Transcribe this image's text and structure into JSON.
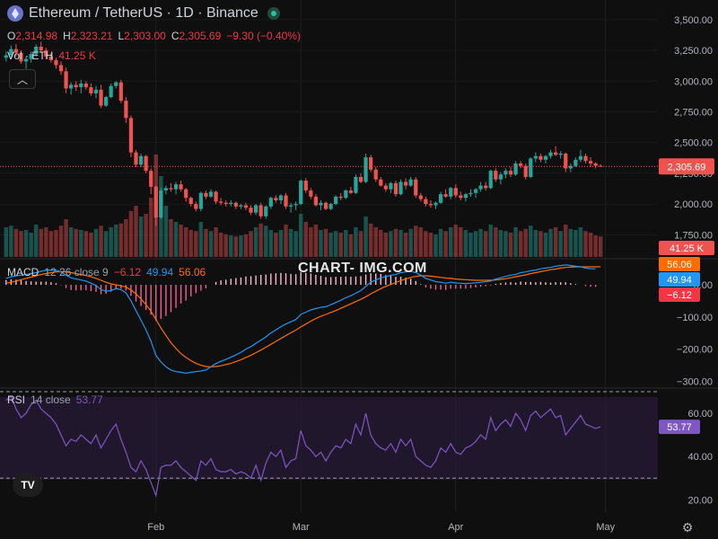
{
  "header": {
    "title": "Ethereum / TetherUS · 1D · Binance",
    "symbol_icon": "ethereum-icon",
    "o_label": "O",
    "o_value": "2,314.98",
    "h_label": "H",
    "h_value": "2,323.21",
    "l_label": "L",
    "l_value": "2,303.00",
    "c_label": "C",
    "c_value": "2,305.69",
    "change": "−9.30 (−0.40%)",
    "vol_label": "Vol · ETH",
    "vol_value": "41.25 K"
  },
  "watermark": "CHART- IMG.COM",
  "price_axis": {
    "ticks": [
      "3,500.00",
      "3,250.00",
      "3,000.00",
      "2,750.00",
      "2,500.00",
      "2,250.00",
      "2,000.00",
      "1,750.00"
    ],
    "last_price": "2,305.69",
    "vol_badge": "41.25 K"
  },
  "macd": {
    "label": "MACD",
    "params": "12 26 close 9",
    "hist_value": "−6.12",
    "macd_value": "49.94",
    "signal_value": "56.06",
    "ticks": [
      "0.00",
      "−100.00",
      "−200.00",
      "−300.00"
    ]
  },
  "rsi": {
    "label": "RSI",
    "params": "14 close",
    "value": "53.77",
    "ticks": [
      "60.00",
      "40.00",
      "20.00"
    ]
  },
  "time_axis": [
    "Feb",
    "Mar",
    "Apr",
    "May"
  ],
  "colors": {
    "up": "#26a69a",
    "down": "#ef5350",
    "macd": "#2196f3",
    "signal": "#ff6d00",
    "rsi": "#7e57c2",
    "hist_pos": "#f06292"
  },
  "chart_data": {
    "type": "candlestick",
    "title": "Ethereum / TetherUS · 1D · Binance",
    "price_range": [
      1650,
      3550
    ],
    "last_close": 2305.69,
    "ohlc": [
      [
        3190,
        3240,
        3160,
        3210
      ],
      [
        3210,
        3290,
        3180,
        3260
      ],
      [
        3260,
        3300,
        3200,
        3230
      ],
      [
        3230,
        3250,
        3140,
        3160
      ],
      [
        3160,
        3200,
        3100,
        3180
      ],
      [
        3180,
        3240,
        3150,
        3220
      ],
      [
        3220,
        3300,
        3200,
        3280
      ],
      [
        3280,
        3320,
        3230,
        3250
      ],
      [
        3250,
        3270,
        3180,
        3200
      ],
      [
        3200,
        3230,
        3150,
        3170
      ],
      [
        3170,
        3190,
        3100,
        3130
      ],
      [
        3130,
        3160,
        3050,
        3080
      ],
      [
        3080,
        3110,
        2900,
        2940
      ],
      [
        2940,
        2990,
        2890,
        2970
      ],
      [
        2970,
        3000,
        2920,
        2950
      ],
      [
        2950,
        3010,
        2900,
        2980
      ],
      [
        2980,
        3000,
        2930,
        2950
      ],
      [
        2950,
        2980,
        2880,
        2900
      ],
      [
        2900,
        2960,
        2860,
        2930
      ],
      [
        2930,
        2970,
        2780,
        2800
      ],
      [
        2800,
        2880,
        2790,
        2870
      ],
      [
        2870,
        2980,
        2860,
        2960
      ],
      [
        2960,
        3000,
        2940,
        2990
      ],
      [
        2990,
        3010,
        2820,
        2840
      ],
      [
        2840,
        2870,
        2660,
        2700
      ],
      [
        2700,
        2720,
        2380,
        2420
      ],
      [
        2420,
        2440,
        2300,
        2320
      ],
      [
        2320,
        2410,
        2300,
        2390
      ],
      [
        2390,
        2400,
        2250,
        2270
      ],
      [
        2270,
        2290,
        2080,
        2140
      ],
      [
        2140,
        2150,
        1820,
        1890
      ],
      [
        1890,
        2130,
        1880,
        2110
      ],
      [
        2110,
        2150,
        2080,
        2130
      ],
      [
        2130,
        2170,
        2100,
        2120
      ],
      [
        2120,
        2180,
        2080,
        2160
      ],
      [
        2160,
        2190,
        2100,
        2120
      ],
      [
        2120,
        2130,
        2020,
        2050
      ],
      [
        2050,
        2060,
        1980,
        2000
      ],
      [
        2000,
        2020,
        1940,
        1960
      ],
      [
        1960,
        2100,
        1940,
        2090
      ],
      [
        2090,
        2110,
        2040,
        2060
      ],
      [
        2060,
        2120,
        2050,
        2100
      ],
      [
        2100,
        2110,
        2000,
        2020
      ],
      [
        2020,
        2050,
        1990,
        2010
      ],
      [
        2010,
        2030,
        1980,
        2000
      ],
      [
        2000,
        2030,
        1980,
        2010
      ],
      [
        2010,
        2020,
        1960,
        1980
      ],
      [
        1980,
        2000,
        1960,
        1990
      ],
      [
        1990,
        2010,
        1950,
        1970
      ],
      [
        1970,
        1990,
        1910,
        1930
      ],
      [
        1930,
        2000,
        1910,
        1990
      ],
      [
        1990,
        2010,
        1880,
        1900
      ],
      [
        1900,
        1990,
        1880,
        1980
      ],
      [
        1980,
        2060,
        1960,
        2050
      ],
      [
        2050,
        2070,
        2010,
        2030
      ],
      [
        2030,
        2080,
        2000,
        2070
      ],
      [
        2070,
        2090,
        1960,
        1980
      ],
      [
        1980,
        2010,
        1930,
        1990
      ],
      [
        1990,
        2020,
        1950,
        2000
      ],
      [
        2000,
        2200,
        1990,
        2190
      ],
      [
        2190,
        2210,
        2090,
        2110
      ],
      [
        2110,
        2130,
        2040,
        2060
      ],
      [
        2060,
        2080,
        1980,
        1990
      ],
      [
        1990,
        2030,
        1950,
        2010
      ],
      [
        2010,
        2020,
        1950,
        1960
      ],
      [
        1960,
        2010,
        1950,
        2000
      ],
      [
        2000,
        2070,
        1990,
        2060
      ],
      [
        2060,
        2090,
        2030,
        2050
      ],
      [
        2050,
        2120,
        2040,
        2110
      ],
      [
        2110,
        2140,
        2080,
        2090
      ],
      [
        2090,
        2240,
        2080,
        2220
      ],
      [
        2220,
        2250,
        2170,
        2180
      ],
      [
        2180,
        2410,
        2170,
        2380
      ],
      [
        2380,
        2400,
        2260,
        2280
      ],
      [
        2280,
        2300,
        2180,
        2200
      ],
      [
        2200,
        2220,
        2140,
        2150
      ],
      [
        2150,
        2170,
        2100,
        2120
      ],
      [
        2120,
        2180,
        2090,
        2170
      ],
      [
        2170,
        2190,
        2060,
        2080
      ],
      [
        2080,
        2200,
        2070,
        2180
      ],
      [
        2180,
        2210,
        2120,
        2150
      ],
      [
        2150,
        2220,
        2140,
        2200
      ],
      [
        2200,
        2220,
        2050,
        2070
      ],
      [
        2070,
        2090,
        2020,
        2040
      ],
      [
        2040,
        2060,
        1980,
        2000
      ],
      [
        2000,
        2030,
        1970,
        1990
      ],
      [
        1990,
        2020,
        1960,
        2010
      ],
      [
        2010,
        2100,
        2000,
        2080
      ],
      [
        2080,
        2120,
        2050,
        2060
      ],
      [
        2060,
        2140,
        2040,
        2130
      ],
      [
        2130,
        2160,
        2050,
        2070
      ],
      [
        2070,
        2100,
        2030,
        2050
      ],
      [
        2050,
        2090,
        2020,
        2080
      ],
      [
        2080,
        2120,
        2060,
        2090
      ],
      [
        2090,
        2130,
        2050,
        2120
      ],
      [
        2120,
        2180,
        2100,
        2150
      ],
      [
        2150,
        2180,
        2110,
        2130
      ],
      [
        2130,
        2280,
        2120,
        2270
      ],
      [
        2270,
        2290,
        2180,
        2200
      ],
      [
        2200,
        2260,
        2160,
        2240
      ],
      [
        2240,
        2290,
        2210,
        2270
      ],
      [
        2270,
        2300,
        2220,
        2240
      ],
      [
        2240,
        2350,
        2230,
        2330
      ],
      [
        2330,
        2350,
        2290,
        2310
      ],
      [
        2310,
        2330,
        2200,
        2220
      ],
      [
        2220,
        2380,
        2210,
        2370
      ],
      [
        2370,
        2420,
        2340,
        2390
      ],
      [
        2390,
        2410,
        2340,
        2360
      ],
      [
        2360,
        2400,
        2330,
        2390
      ],
      [
        2390,
        2440,
        2370,
        2420
      ],
      [
        2420,
        2470,
        2390,
        2400
      ],
      [
        2400,
        2430,
        2370,
        2410
      ],
      [
        2410,
        2420,
        2260,
        2290
      ],
      [
        2290,
        2330,
        2260,
        2310
      ],
      [
        2310,
        2380,
        2300,
        2360
      ],
      [
        2360,
        2440,
        2340,
        2390
      ],
      [
        2390,
        2410,
        2330,
        2350
      ],
      [
        2350,
        2380,
        2300,
        2330
      ],
      [
        2330,
        2340,
        2290,
        2310
      ],
      [
        2310,
        2323,
        2303,
        2306
      ]
    ],
    "volume_range": [
      0,
      200
    ],
    "volume": [
      55,
      58,
      52,
      48,
      50,
      45,
      60,
      52,
      55,
      48,
      50,
      58,
      70,
      55,
      52,
      50,
      48,
      45,
      52,
      58,
      48,
      55,
      60,
      62,
      70,
      85,
      95,
      75,
      80,
      110,
      190,
      150,
      95,
      70,
      65,
      60,
      55,
      50,
      48,
      65,
      52,
      48,
      55,
      45,
      42,
      40,
      38,
      40,
      42,
      48,
      55,
      62,
      58,
      50,
      45,
      50,
      60,
      52,
      48,
      80,
      65,
      55,
      60,
      50,
      52,
      45,
      48,
      45,
      50,
      42,
      55,
      48,
      75,
      62,
      55,
      50,
      45,
      48,
      52,
      50,
      45,
      52,
      58,
      55,
      48,
      45,
      42,
      52,
      48,
      55,
      60,
      55,
      50,
      45,
      48,
      52,
      48,
      60,
      55,
      50,
      48,
      45,
      55,
      48,
      52,
      58,
      50,
      48,
      45,
      52,
      55,
      48,
      60,
      52,
      50,
      55,
      48,
      45,
      40,
      38
    ],
    "macd": {
      "range": [
        -310,
        70
      ],
      "macd_line": [
        20,
        25,
        28,
        30,
        32,
        35,
        38,
        42,
        45,
        46,
        45,
        40,
        30,
        22,
        18,
        15,
        12,
        5,
        -2,
        -15,
        -20,
        -18,
        -12,
        -15,
        -25,
        -50,
        -80,
        -110,
        -140,
        -175,
        -220,
        -240,
        -255,
        -265,
        -270,
        -272,
        -275,
        -272,
        -270,
        -268,
        -265,
        -255,
        -245,
        -238,
        -232,
        -225,
        -218,
        -210,
        -200,
        -192,
        -182,
        -172,
        -162,
        -150,
        -140,
        -130,
        -122,
        -115,
        -108,
        -92,
        -85,
        -78,
        -74,
        -70,
        -68,
        -62,
        -55,
        -48,
        -40,
        -34,
        -26,
        -18,
        -5,
        8,
        15,
        22,
        25,
        30,
        32,
        38,
        40,
        42,
        38,
        30,
        20,
        15,
        10,
        8,
        5,
        8,
        6,
        5,
        4,
        5,
        6,
        8,
        10,
        12,
        18,
        22,
        26,
        30,
        32,
        38,
        40,
        44,
        46,
        50,
        52,
        54,
        58,
        60,
        62,
        60,
        58,
        56,
        52,
        50,
        49.94
      ],
      "signal_line": [
        5,
        8,
        12,
        16,
        20,
        24,
        28,
        32,
        35,
        38,
        40,
        41,
        40,
        38,
        35,
        32,
        29,
        25,
        20,
        14,
        8,
        3,
        0,
        -3,
        -7,
        -16,
        -28,
        -44,
        -62,
        -82,
        -108,
        -134,
        -158,
        -180,
        -198,
        -214,
        -226,
        -236,
        -244,
        -250,
        -254,
        -255,
        -254,
        -252,
        -248,
        -244,
        -239,
        -233,
        -226,
        -219,
        -211,
        -203,
        -194,
        -185,
        -176,
        -167,
        -158,
        -149,
        -141,
        -131,
        -122,
        -113,
        -105,
        -98,
        -92,
        -86,
        -80,
        -73,
        -66,
        -59,
        -52,
        -45,
        -37,
        -28,
        -20,
        -12,
        -5,
        1,
        7,
        13,
        18,
        23,
        26,
        28,
        28,
        27,
        25,
        23,
        21,
        20,
        18,
        17,
        16,
        15,
        14,
        14,
        14,
        14,
        15,
        17,
        19,
        22,
        25,
        28,
        31,
        35,
        38,
        41,
        44,
        47,
        49,
        52,
        54,
        55,
        56,
        56,
        56,
        56,
        56,
        56.06
      ],
      "histogram": [
        15,
        17,
        16,
        14,
        12,
        11,
        10,
        10,
        10,
        8,
        5,
        -1,
        -10,
        -16,
        -17,
        -17,
        -17,
        -20,
        -22,
        -29,
        -28,
        -21,
        -12,
        -12,
        -18,
        -34,
        -52,
        -66,
        -78,
        -93,
        -112,
        -106,
        -97,
        -85,
        -72,
        -58,
        -49,
        -36,
        -26,
        -18,
        -11,
        0,
        9,
        14,
        16,
        19,
        21,
        23,
        26,
        27,
        29,
        31,
        32,
        35,
        36,
        37,
        36,
        34,
        33,
        39,
        37,
        35,
        31,
        28,
        24,
        24,
        25,
        25,
        26,
        25,
        26,
        27,
        32,
        36,
        35,
        34,
        30,
        29,
        25,
        25,
        22,
        19,
        12,
        2,
        -8,
        -12,
        -15,
        -15,
        -16,
        -12,
        -12,
        -12,
        -12,
        -10,
        -8,
        -6,
        -4,
        -2,
        3,
        5,
        7,
        8,
        7,
        10,
        9,
        9,
        8,
        9,
        8,
        7,
        8,
        8,
        8,
        5,
        2,
        0,
        -4,
        -6,
        -6.12
      ]
    },
    "rsi": {
      "range": [
        16,
        70
      ],
      "bands": [
        70,
        30
      ],
      "values": [
        66,
        68,
        62,
        58,
        60,
        64,
        66,
        62,
        60,
        58,
        55,
        50,
        45,
        48,
        47,
        50,
        48,
        46,
        50,
        44,
        48,
        52,
        55,
        48,
        42,
        35,
        33,
        38,
        34,
        28,
        22,
        35,
        36,
        36,
        38,
        35,
        33,
        31,
        29,
        38,
        36,
        39,
        34,
        33,
        33,
        34,
        32,
        33,
        32,
        30,
        36,
        29,
        37,
        42,
        40,
        43,
        35,
        38,
        39,
        52,
        45,
        43,
        40,
        42,
        38,
        42,
        45,
        44,
        48,
        46,
        55,
        50,
        60,
        50,
        46,
        44,
        43,
        46,
        42,
        48,
        45,
        48,
        40,
        38,
        36,
        35,
        38,
        44,
        42,
        46,
        42,
        41,
        44,
        45,
        47,
        50,
        48,
        58,
        52,
        55,
        57,
        54,
        60,
        57,
        52,
        59,
        61,
        58,
        60,
        62,
        58,
        59,
        50,
        53,
        56,
        59,
        55,
        54,
        53,
        53.77
      ]
    },
    "x_ticks": [
      {
        "label": "Feb",
        "index": 30
      },
      {
        "label": "Mar",
        "index": 59
      },
      {
        "label": "Apr",
        "index": 90
      },
      {
        "label": "May",
        "index": 120
      }
    ]
  }
}
